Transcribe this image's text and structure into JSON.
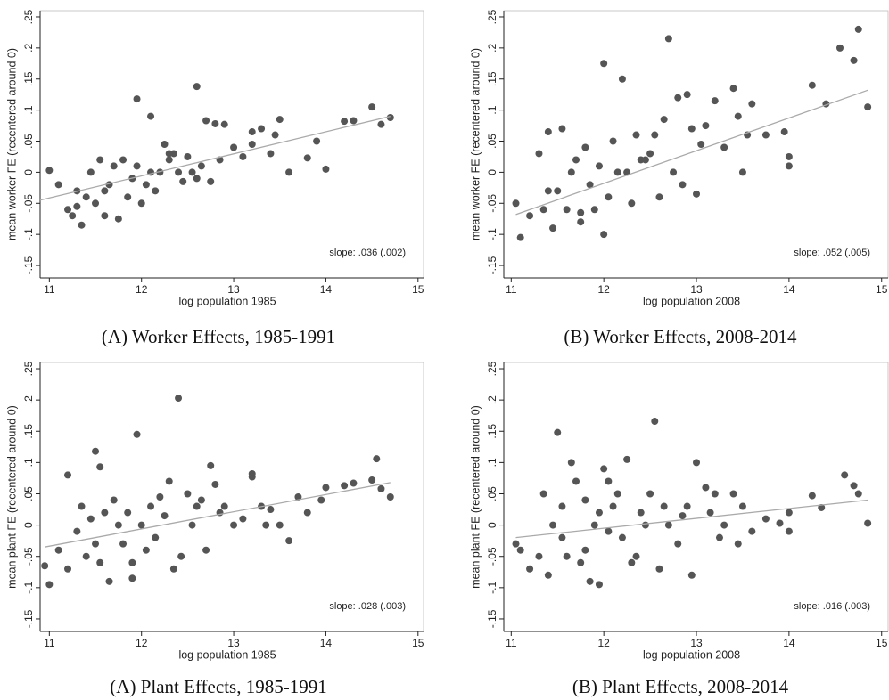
{
  "chart_data": [
    {
      "type": "scatter",
      "x_label": "log population 1985",
      "y_label": "mean worker FE (recentered around 0)",
      "annotation": "slope: .036 (.002)",
      "caption": "(A) Worker Effects, 1985-1991",
      "color": "#555555",
      "xlim": [
        10.9,
        15.06
      ],
      "ylim": [
        -0.17,
        0.26
      ],
      "xticks": [
        11,
        12,
        13,
        14,
        15
      ],
      "yticks": [
        {
          "value": -0.15,
          "label": "-.15"
        },
        {
          "value": -0.1,
          "label": "-.1"
        },
        {
          "value": -0.05,
          "label": "-.05"
        },
        0,
        {
          "value": 0.05,
          "label": ".05"
        },
        {
          "value": 0.1,
          "label": ".1"
        },
        {
          "value": 0.15,
          "label": ".15"
        },
        {
          "value": 0.2,
          "label": ".2"
        },
        {
          "value": 0.25,
          "label": ".25"
        }
      ],
      "x": [
        11.0,
        11.1,
        11.2,
        11.25,
        11.3,
        11.35,
        11.4,
        11.45,
        11.5,
        11.55,
        11.6,
        11.65,
        11.7,
        11.75,
        11.8,
        11.85,
        11.9,
        11.95,
        12.0,
        12.05,
        12.1,
        12.15,
        12.2,
        12.25,
        12.3,
        12.35,
        12.4,
        12.45,
        12.5,
        12.55,
        12.6,
        12.65,
        12.7,
        12.75,
        12.8,
        12.85,
        12.9,
        13.0,
        13.1,
        13.2,
        13.2,
        13.3,
        13.4,
        13.5,
        13.6,
        13.8,
        13.9,
        14.0,
        14.2,
        14.3,
        14.5,
        14.6,
        14.7,
        11.95,
        12.1,
        12.6,
        11.6,
        11.3,
        12.3,
        13.45
      ],
      "y": [
        0.003,
        -0.02,
        -0.06,
        -0.07,
        -0.03,
        -0.085,
        -0.04,
        0.0,
        -0.05,
        0.02,
        -0.07,
        -0.02,
        0.01,
        -0.075,
        0.02,
        -0.04,
        -0.01,
        0.118,
        -0.05,
        -0.02,
        0.09,
        -0.03,
        0.0,
        0.045,
        0.02,
        0.03,
        0.0,
        -0.015,
        0.025,
        0.0,
        0.138,
        0.01,
        0.083,
        -0.015,
        0.078,
        0.02,
        0.077,
        0.04,
        0.025,
        0.065,
        0.045,
        0.07,
        0.03,
        0.085,
        0.0,
        0.023,
        0.05,
        0.005,
        0.082,
        0.083,
        0.105,
        0.077,
        0.088,
        0.01,
        0.0,
        -0.01,
        -0.03,
        -0.055,
        0.03,
        0.06
      ],
      "fit_line": {
        "x": [
          10.9,
          14.7
        ],
        "y": [
          -0.045,
          0.09
        ],
        "color": "#aaaaaa"
      }
    },
    {
      "type": "scatter",
      "x_label": "log population 2008",
      "y_label": "mean worker FE (recentered around 0)",
      "annotation": "slope: .052 (.005)",
      "caption": "(B) Worker Effects, 2008-2014",
      "color": "#555555",
      "xlim": [
        10.92,
        15.07
      ],
      "ylim": [
        -0.17,
        0.26
      ],
      "xticks": [
        11,
        12,
        13,
        14,
        15
      ],
      "yticks": [
        {
          "value": -0.15,
          "label": "-.15"
        },
        {
          "value": -0.1,
          "label": "-.1"
        },
        {
          "value": -0.05,
          "label": "-.05"
        },
        0,
        {
          "value": 0.05,
          "label": ".05"
        },
        {
          "value": 0.1,
          "label": ".1"
        },
        {
          "value": 0.15,
          "label": ".15"
        },
        {
          "value": 0.2,
          "label": ".2"
        },
        {
          "value": 0.25,
          "label": ".25"
        }
      ],
      "x": [
        11.05,
        11.1,
        11.2,
        11.3,
        11.35,
        11.4,
        11.45,
        11.5,
        11.55,
        11.6,
        11.65,
        11.7,
        11.75,
        11.8,
        11.85,
        11.9,
        11.95,
        12.0,
        12.0,
        12.05,
        12.1,
        12.2,
        12.25,
        12.3,
        12.35,
        12.4,
        12.5,
        12.55,
        12.6,
        12.65,
        12.7,
        12.75,
        12.8,
        12.9,
        12.95,
        13.0,
        13.05,
        13.1,
        13.2,
        13.3,
        13.4,
        13.5,
        13.55,
        13.6,
        13.75,
        13.95,
        14.0,
        14.0,
        14.25,
        14.4,
        14.55,
        14.7,
        14.75,
        14.85,
        11.4,
        11.75,
        12.15,
        12.45,
        12.85,
        13.45
      ],
      "y": [
        -0.05,
        -0.105,
        -0.07,
        0.03,
        -0.06,
        0.065,
        -0.09,
        -0.03,
        0.07,
        -0.06,
        0.0,
        0.02,
        -0.08,
        0.04,
        -0.02,
        -0.06,
        0.01,
        0.175,
        -0.1,
        -0.04,
        0.05,
        0.15,
        0.0,
        -0.05,
        0.06,
        0.02,
        0.03,
        0.06,
        -0.04,
        0.085,
        0.215,
        0.0,
        0.12,
        0.125,
        0.07,
        -0.035,
        0.045,
        0.075,
        0.115,
        0.04,
        0.135,
        0.0,
        0.06,
        0.11,
        0.06,
        0.065,
        0.025,
        0.01,
        0.14,
        0.11,
        0.2,
        0.18,
        0.23,
        0.105,
        -0.03,
        -0.065,
        0.0,
        0.02,
        -0.02,
        0.09
      ],
      "fit_line": {
        "x": [
          11.05,
          14.85
        ],
        "y": [
          -0.068,
          0.132
        ],
        "color": "#aaaaaa"
      }
    },
    {
      "type": "scatter",
      "x_label": "log population 1985",
      "y_label": "mean plant FE (recentered around 0)",
      "annotation": "slope: .028 (.003)",
      "caption": "(A) Plant Effects, 1985-1991",
      "color": "#555555",
      "xlim": [
        10.9,
        15.06
      ],
      "ylim": [
        -0.17,
        0.26
      ],
      "xticks": [
        11,
        12,
        13,
        14,
        15
      ],
      "yticks": [
        {
          "value": -0.15,
          "label": "-.15"
        },
        {
          "value": -0.1,
          "label": "-.1"
        },
        {
          "value": -0.05,
          "label": "-.05"
        },
        0,
        {
          "value": 0.05,
          "label": ".05"
        },
        {
          "value": 0.1,
          "label": ".1"
        },
        {
          "value": 0.15,
          "label": ".15"
        },
        {
          "value": 0.2,
          "label": ".2"
        },
        {
          "value": 0.25,
          "label": ".25"
        }
      ],
      "x": [
        10.95,
        11.0,
        11.1,
        11.2,
        11.2,
        11.3,
        11.35,
        11.4,
        11.45,
        11.5,
        11.55,
        11.55,
        11.6,
        11.65,
        11.7,
        11.75,
        11.8,
        11.85,
        11.9,
        11.95,
        12.0,
        12.05,
        12.1,
        12.15,
        12.2,
        12.3,
        12.35,
        12.4,
        12.43,
        12.5,
        12.55,
        12.6,
        12.7,
        12.75,
        12.8,
        12.85,
        12.9,
        13.0,
        13.1,
        13.2,
        13.2,
        13.3,
        13.4,
        13.5,
        13.6,
        13.7,
        13.8,
        13.95,
        14.0,
        14.2,
        14.3,
        14.5,
        14.55,
        14.6,
        14.7,
        11.5,
        11.9,
        12.25,
        12.65,
        13.35
      ],
      "y": [
        -0.065,
        -0.095,
        -0.04,
        0.08,
        -0.07,
        -0.01,
        0.03,
        -0.05,
        0.01,
        0.118,
        0.093,
        -0.06,
        0.02,
        -0.09,
        0.04,
        0.0,
        -0.03,
        0.02,
        -0.085,
        0.145,
        0.0,
        -0.04,
        0.03,
        -0.02,
        0.045,
        0.07,
        -0.07,
        0.203,
        -0.05,
        0.05,
        0.0,
        0.03,
        -0.04,
        0.095,
        0.065,
        0.02,
        0.03,
        0.0,
        0.01,
        0.082,
        0.077,
        0.03,
        0.025,
        0.0,
        -0.025,
        0.045,
        0.02,
        0.04,
        0.06,
        0.063,
        0.067,
        0.072,
        0.106,
        0.058,
        0.045,
        -0.03,
        -0.06,
        0.015,
        0.04,
        0.0
      ],
      "fit_line": {
        "x": [
          10.95,
          14.7
        ],
        "y": [
          -0.035,
          0.068
        ],
        "color": "#aaaaaa"
      }
    },
    {
      "type": "scatter",
      "x_label": "log population 2008",
      "y_label": "mean plant FE (recentered around 0)",
      "annotation": "slope: .016 (.003)",
      "caption": "(B) Plant Effects, 2008-2014",
      "color": "#555555",
      "xlim": [
        10.92,
        15.07
      ],
      "ylim": [
        -0.17,
        0.26
      ],
      "xticks": [
        11,
        12,
        13,
        14,
        15
      ],
      "yticks": [
        {
          "value": -0.15,
          "label": "-.15"
        },
        {
          "value": -0.1,
          "label": "-.1"
        },
        {
          "value": -0.05,
          "label": "-.05"
        },
        0,
        {
          "value": 0.05,
          "label": ".05"
        },
        {
          "value": 0.1,
          "label": ".1"
        },
        {
          "value": 0.15,
          "label": ".15"
        },
        {
          "value": 0.2,
          "label": ".2"
        },
        {
          "value": 0.25,
          "label": ".25"
        }
      ],
      "x": [
        11.05,
        11.1,
        11.2,
        11.3,
        11.35,
        11.4,
        11.45,
        11.5,
        11.55,
        11.6,
        11.65,
        11.7,
        11.75,
        11.8,
        11.85,
        11.9,
        11.95,
        12.0,
        12.05,
        12.1,
        12.15,
        12.2,
        12.25,
        12.3,
        12.4,
        12.45,
        12.5,
        12.55,
        12.6,
        12.65,
        12.7,
        12.8,
        12.9,
        12.95,
        13.0,
        13.1,
        13.15,
        13.2,
        13.3,
        13.4,
        13.45,
        13.5,
        13.6,
        13.75,
        13.9,
        14.0,
        14.0,
        14.25,
        14.35,
        14.6,
        14.7,
        14.75,
        14.85,
        11.55,
        11.8,
        12.05,
        12.35,
        12.85,
        13.25,
        11.95
      ],
      "y": [
        -0.03,
        -0.04,
        -0.07,
        -0.05,
        0.05,
        -0.08,
        0.0,
        0.148,
        0.03,
        -0.05,
        0.1,
        0.07,
        -0.06,
        0.04,
        -0.09,
        0.0,
        -0.095,
        0.09,
        -0.01,
        0.03,
        0.05,
        -0.02,
        0.105,
        -0.06,
        0.02,
        0.0,
        0.05,
        0.166,
        -0.07,
        0.03,
        0.0,
        -0.03,
        0.03,
        -0.08,
        0.1,
        0.06,
        0.02,
        0.05,
        0.0,
        0.05,
        -0.03,
        0.03,
        -0.01,
        0.01,
        0.003,
        0.02,
        -0.01,
        0.047,
        0.028,
        0.08,
        0.063,
        0.05,
        0.003,
        -0.02,
        -0.04,
        0.07,
        -0.05,
        0.015,
        -0.02,
        0.02
      ],
      "fit_line": {
        "x": [
          11.05,
          14.85
        ],
        "y": [
          -0.02,
          0.04
        ],
        "color": "#aaaaaa"
      }
    }
  ]
}
